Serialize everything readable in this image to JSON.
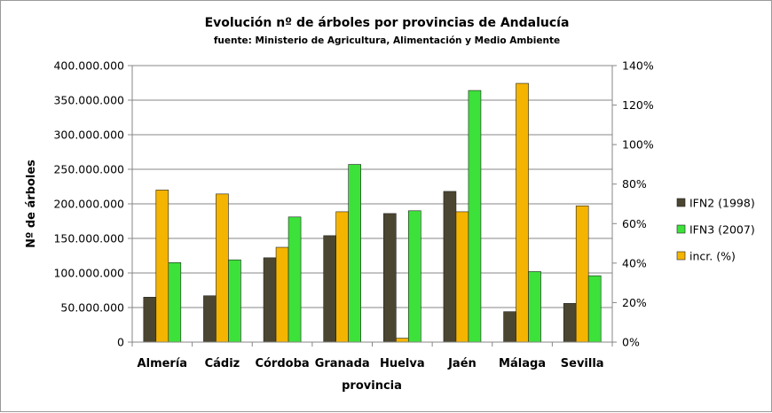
{
  "chart_data": {
    "type": "bar",
    "title": "Evolución nº de árboles por provincias de Andalucía",
    "subtitle": "fuente: Ministerio de Agricultura, Alimentación y Medio Ambiente",
    "xlabel": "provincia",
    "ylabel": "Nº de árboles",
    "categories": [
      "Almería",
      "Cádiz",
      "Córdoba",
      "Granada",
      "Huelva",
      "Jaén",
      "Málaga",
      "Sevilla"
    ],
    "y_left": {
      "min": 0,
      "max": 400000000,
      "step": 50000000,
      "tick_labels": [
        "0",
        "50.000.000",
        "100.000.000",
        "150.000.000",
        "200.000.000",
        "250.000.000",
        "300.000.000",
        "350.000.000",
        "400.000.000"
      ]
    },
    "y_right": {
      "min": 0,
      "max": 140,
      "step": 20,
      "tick_labels": [
        "0%",
        "20%",
        "40%",
        "60%",
        "80%",
        "100%",
        "120%",
        "140%"
      ]
    },
    "series": [
      {
        "name": "IFN2 (1998)",
        "axis": "left",
        "color": "#4b4631",
        "values": [
          65000000,
          67000000,
          122000000,
          154000000,
          186000000,
          218000000,
          44000000,
          56000000
        ]
      },
      {
        "name": "incr. (%)",
        "axis": "right",
        "color": "#f5b400",
        "values": [
          77,
          75,
          48,
          66,
          2,
          66,
          131,
          69
        ]
      },
      {
        "name": "IFN3 (2007)",
        "axis": "left",
        "color": "#3ce23a",
        "values": [
          115000000,
          119000000,
          181000000,
          257000000,
          190000000,
          364000000,
          102000000,
          96000000
        ]
      }
    ],
    "legend": {
      "position": "right",
      "order": [
        "IFN2 (1998)",
        "IFN3 (2007)",
        "incr. (%)"
      ]
    },
    "grid": true
  }
}
